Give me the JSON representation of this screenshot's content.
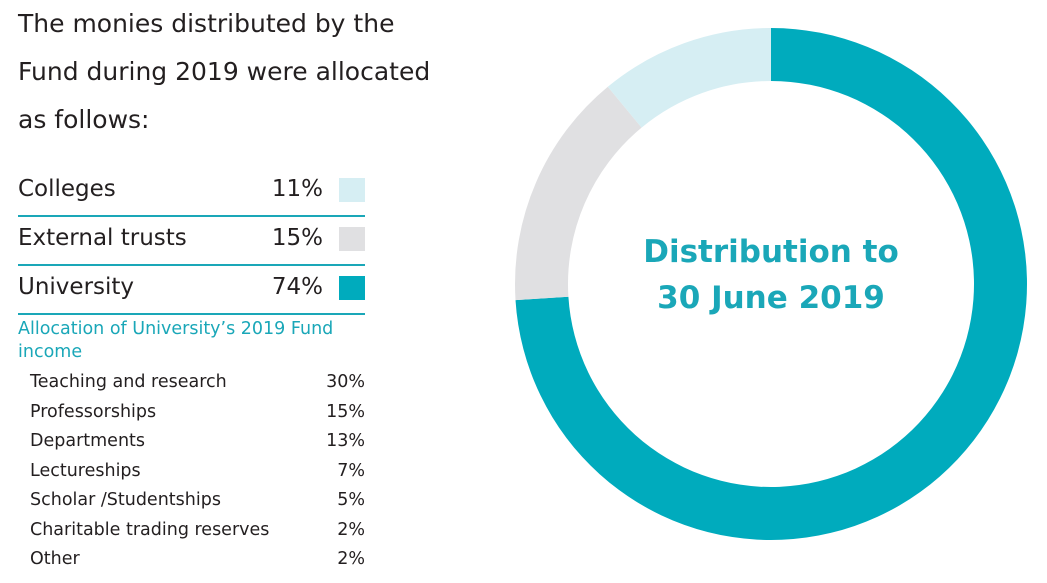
{
  "intro": {
    "lines": [
      "The monies distributed by the",
      "Fund during 2019 were allocated",
      "as follows:"
    ]
  },
  "colors": {
    "accent": "#1aa7b8",
    "colleges": "#d6eef3",
    "external_trusts": "#e0e0e2",
    "university": "#00abbd",
    "text": "#231f20"
  },
  "legend": [
    {
      "label": "Colleges",
      "value": "11%",
      "color_key": "colleges"
    },
    {
      "label": "External trusts",
      "value": "15%",
      "color_key": "external_trusts"
    },
    {
      "label": "University",
      "value": "74%",
      "color_key": "university"
    }
  ],
  "allocation": {
    "title_line1": "Allocation of University’s 2019 Fund",
    "title_line2": "income",
    "items": [
      {
        "label": "Teaching and research",
        "value": "30%"
      },
      {
        "label": "Professorships",
        "value": "15%"
      },
      {
        "label": "Departments",
        "value": "13%"
      },
      {
        "label": "Lectureships",
        "value": "7%"
      },
      {
        "label": "Scholar /Studentships",
        "value": "5%"
      },
      {
        "label": "Charitable trading reserves",
        "value": "2%"
      },
      {
        "label": "Other",
        "value": "2%"
      }
    ]
  },
  "chart_data": {
    "type": "pie",
    "donut": true,
    "title": "",
    "center_label_line1": "Distribution to",
    "center_label_line2": "30 June 2019",
    "categories": [
      "University",
      "External trusts",
      "Colleges"
    ],
    "values": [
      74,
      15,
      11
    ],
    "colors": [
      "#00abbd",
      "#e0e0e2",
      "#d6eef3"
    ],
    "start": "top",
    "direction": "clockwise"
  }
}
